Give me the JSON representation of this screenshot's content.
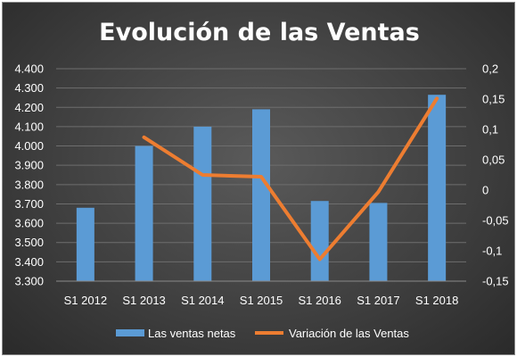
{
  "chart_data": {
    "type": "bar",
    "title": "Evolución de las Ventas",
    "categories": [
      "S1 2012",
      "S1 2013",
      "S1 2014",
      "S1 2015",
      "S1 2016",
      "S1 2017",
      "S1 2018"
    ],
    "series": [
      {
        "name": "Las ventas netas",
        "type": "bar",
        "axis": "left",
        "color": "#5b9bd5",
        "values": [
          3680,
          4000,
          4100,
          4190,
          3715,
          3705,
          4265
        ]
      },
      {
        "name": "Variación de las Ventas",
        "type": "line",
        "axis": "right",
        "color": "#ed7d31",
        "values": [
          null,
          0.087,
          0.025,
          0.022,
          -0.114,
          -0.003,
          0.151
        ]
      }
    ],
    "y_left": {
      "ylim": [
        3300,
        4400
      ],
      "ticks": [
        3300,
        3400,
        3500,
        3600,
        3700,
        3800,
        3900,
        4000,
        4100,
        4200,
        4300,
        4400
      ],
      "tick_labels": [
        "3.300",
        "3.400",
        "3.500",
        "3.600",
        "3.700",
        "3.800",
        "3.900",
        "4.000",
        "4.100",
        "4.200",
        "4.300",
        "4.400"
      ]
    },
    "y_right": {
      "ylim": [
        -0.15,
        0.2
      ],
      "ticks": [
        -0.15,
        -0.1,
        -0.05,
        0,
        0.05,
        0.1,
        0.15,
        0.2
      ],
      "tick_labels": [
        "-0,15",
        "-0,1",
        "-0,05",
        "0",
        "0,05",
        "0,1",
        "0,15",
        "0,2"
      ]
    },
    "grid": true,
    "legend": "bottom"
  }
}
